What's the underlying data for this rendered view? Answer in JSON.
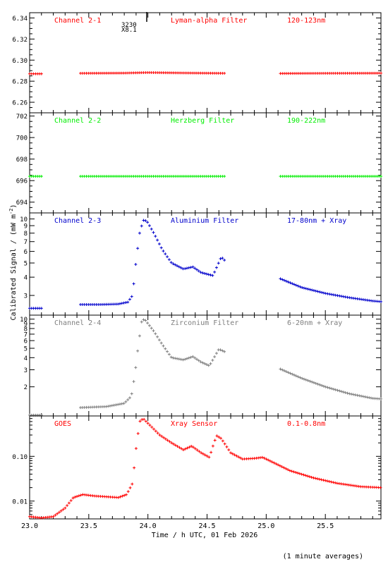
{
  "figure": {
    "ylabel": "Calibrated Signal / (mW m",
    "ylabel_sup": "-2",
    "ylabel_close": ")",
    "xlabel": "Time / h UTC, 01 Feb 2026",
    "footnote": "(1 minute averages)",
    "flare_annotation": {
      "time": "3230",
      "class": "X8.1",
      "peak_hour": 23.93
    }
  },
  "chart_data": [
    {
      "type": "scatter",
      "channel": "Channel 2-1",
      "filter": "Lyman-alpha Filter",
      "band": "120-123nm",
      "color": "#ff0000",
      "yscale": "linear",
      "ylim": [
        6.25,
        6.345
      ],
      "yticks": [
        6.26,
        6.28,
        6.3,
        6.32,
        6.34
      ],
      "yticklabels": [
        "6.26",
        "6.28",
        "6.30",
        "6.32",
        "6.34"
      ],
      "segments": [
        {
          "x": [
            23.0,
            23.1
          ],
          "y": [
            6.287,
            6.287
          ]
        },
        {
          "x": [
            23.43,
            23.8,
            24.0,
            24.3,
            24.65
          ],
          "y": [
            6.2875,
            6.2877,
            6.2882,
            6.2878,
            6.2875
          ]
        },
        {
          "x": [
            25.12,
            25.5,
            25.97
          ],
          "y": [
            6.2873,
            6.2875,
            6.2876
          ]
        }
      ]
    },
    {
      "type": "scatter",
      "channel": "Channel 2-2",
      "filter": "Herzberg Filter",
      "band": "190-222nm",
      "color": "#00ee00",
      "yscale": "linear",
      "ylim": [
        693.0,
        702.3
      ],
      "yticks": [
        694,
        696,
        698,
        700,
        702
      ],
      "yticklabels": [
        "694",
        "696",
        "698",
        "700",
        "702"
      ],
      "segments": [
        {
          "x": [
            23.0,
            23.1
          ],
          "y": [
            696.4,
            696.4
          ]
        },
        {
          "x": [
            23.43,
            24.0,
            24.65
          ],
          "y": [
            696.4,
            696.4,
            696.4
          ]
        },
        {
          "x": [
            25.12,
            25.5,
            25.97
          ],
          "y": [
            696.4,
            696.4,
            696.4
          ]
        }
      ]
    },
    {
      "type": "scatter",
      "channel": "Channel 2-3",
      "filter": "Aluminium Filter",
      "band": "17-80nm + Xray",
      "color": "#0000cc",
      "yscale": "log",
      "ylim": [
        2.2,
        11
      ],
      "yticks": [
        3,
        4,
        5,
        6,
        7,
        8,
        9,
        10
      ],
      "yticklabels": [
        "3",
        "4",
        "5",
        "6",
        "7",
        "8",
        "9",
        "10"
      ],
      "segments": [
        {
          "x": [
            23.0,
            23.1
          ],
          "y": [
            2.45,
            2.45
          ]
        },
        {
          "x": [
            23.43,
            23.6,
            23.75,
            23.83,
            23.87,
            23.9,
            23.93,
            23.96,
            23.99,
            24.05,
            24.12,
            24.2,
            24.3,
            24.38,
            24.45,
            24.55,
            24.62,
            24.66
          ],
          "y": [
            2.6,
            2.6,
            2.62,
            2.7,
            3.0,
            5.2,
            8.0,
            9.8,
            9.7,
            8.0,
            6.2,
            5.0,
            4.55,
            4.7,
            4.3,
            4.1,
            5.5,
            5.1
          ]
        },
        {
          "x": [
            25.12,
            25.3,
            25.5,
            25.7,
            25.9,
            25.97
          ],
          "y": [
            3.9,
            3.4,
            3.1,
            2.9,
            2.75,
            2.72
          ]
        }
      ]
    },
    {
      "type": "scatter",
      "channel": "Channel 2-4",
      "filter": "Zirconium Filter",
      "band": "6-20nm + Xray",
      "color": "#7f7f7f",
      "yscale": "log",
      "ylim": [
        1.0,
        11
      ],
      "yticks": [
        2,
        3,
        4,
        5,
        6,
        7,
        8,
        9,
        10
      ],
      "yticklabels": [
        "2",
        "3",
        "4",
        "5",
        "6",
        "7",
        "8",
        "9",
        "10"
      ],
      "segments": [
        {
          "x": [
            23.0,
            23.1
          ],
          "y": [
            1.02,
            1.02
          ]
        },
        {
          "x": [
            23.43,
            23.65,
            23.8,
            23.86,
            23.89,
            23.92,
            23.95,
            23.98,
            24.05,
            24.12,
            24.2,
            24.3,
            24.38,
            24.45,
            24.52,
            24.6,
            24.65
          ],
          "y": [
            1.22,
            1.25,
            1.35,
            1.6,
            2.7,
            5.5,
            10.0,
            9.7,
            7.5,
            5.5,
            4.0,
            3.8,
            4.1,
            3.6,
            3.3,
            4.9,
            4.6
          ]
        },
        {
          "x": [
            25.12,
            25.3,
            25.5,
            25.7,
            25.9,
            25.97
          ],
          "y": [
            3.05,
            2.45,
            2.0,
            1.7,
            1.52,
            1.5
          ]
        }
      ]
    },
    {
      "type": "scatter",
      "channel": "GOES",
      "filter": "Xray Sensor",
      "band": "0.1-0.8nm",
      "color": "#ff0000",
      "yscale": "log",
      "ylim": [
        0.004,
        0.8
      ],
      "yticks": [
        0.01,
        0.1
      ],
      "yticklabels": [
        "0.01",
        "0.10"
      ],
      "segments": [
        {
          "x": [
            23.0,
            23.1,
            23.2,
            23.3,
            23.37,
            23.45,
            23.55,
            23.65,
            23.75,
            23.82,
            23.87,
            23.9,
            23.93,
            23.96,
            24.0,
            24.1,
            24.2,
            24.3,
            24.37,
            24.45,
            24.52,
            24.55,
            24.58,
            24.62,
            24.7,
            24.8,
            24.9,
            24.97,
            25.05,
            25.2,
            25.4,
            25.6,
            25.8,
            25.97
          ],
          "y": [
            0.0045,
            0.0042,
            0.0045,
            0.007,
            0.012,
            0.014,
            0.013,
            0.0125,
            0.012,
            0.014,
            0.025,
            0.15,
            0.6,
            0.7,
            0.55,
            0.3,
            0.2,
            0.14,
            0.17,
            0.12,
            0.095,
            0.17,
            0.29,
            0.25,
            0.12,
            0.087,
            0.09,
            0.095,
            0.075,
            0.048,
            0.033,
            0.025,
            0.021,
            0.02
          ]
        }
      ]
    }
  ],
  "x_axis": {
    "xlim": [
      23.0,
      25.97
    ],
    "ticks": [
      23.0,
      23.5,
      24.0,
      24.5,
      25.0,
      25.5
    ],
    "ticklabels": [
      "23.0",
      "23.5",
      "24.0",
      "24.5",
      "25.0",
      "25.5"
    ]
  }
}
